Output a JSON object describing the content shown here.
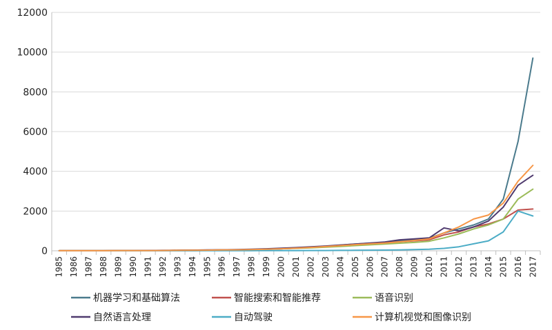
{
  "chart_data": {
    "type": "line",
    "title": "",
    "xlabel": "",
    "ylabel": "",
    "ylim": [
      0,
      12000
    ],
    "yticks": [
      0,
      2000,
      4000,
      6000,
      8000,
      10000,
      12000
    ],
    "ytick_labels": [
      "0",
      "2000",
      "4000",
      "6000",
      "8000",
      "10000",
      "12000"
    ],
    "grid": "horizontal",
    "legend_position": "bottom",
    "categories": [
      "1985",
      "1986",
      "1987",
      "1988",
      "1989",
      "1990",
      "1991",
      "1992",
      "1993",
      "1994",
      "1995",
      "1996",
      "1997",
      "1998",
      "1999",
      "2000",
      "2001",
      "2002",
      "2003",
      "2004",
      "2005",
      "2006",
      "2007",
      "2008",
      "2009",
      "2010",
      "2011",
      "2012",
      "2013",
      "2014",
      "2015",
      "2016",
      "2017"
    ],
    "series": [
      {
        "name": "机器学习和基础算法",
        "color": "#4a7a8c",
        "values": [
          5,
          5,
          5,
          5,
          10,
          10,
          10,
          10,
          15,
          15,
          20,
          30,
          40,
          50,
          70,
          100,
          130,
          170,
          220,
          280,
          340,
          380,
          420,
          500,
          560,
          630,
          900,
          1100,
          1300,
          1600,
          2600,
          5500,
          9700
        ]
      },
      {
        "name": "智能搜索和智能推荐",
        "color": "#c0504d",
        "values": [
          5,
          5,
          5,
          5,
          10,
          10,
          10,
          15,
          20,
          25,
          30,
          40,
          50,
          60,
          80,
          100,
          130,
          160,
          200,
          250,
          300,
          350,
          400,
          450,
          500,
          550,
          800,
          950,
          1200,
          1350,
          1600,
          2050,
          2100
        ]
      },
      {
        "name": "语音识别",
        "color": "#9bbb59",
        "values": [
          5,
          5,
          5,
          5,
          10,
          10,
          10,
          15,
          20,
          25,
          30,
          40,
          50,
          60,
          80,
          100,
          120,
          150,
          180,
          220,
          260,
          300,
          340,
          380,
          420,
          480,
          650,
          850,
          1100,
          1300,
          1600,
          2600,
          3100
        ]
      },
      {
        "name": "自然语言处理",
        "color": "#4f3a6e",
        "values": [
          5,
          5,
          5,
          5,
          10,
          10,
          15,
          20,
          25,
          30,
          40,
          50,
          60,
          80,
          100,
          130,
          160,
          200,
          240,
          290,
          340,
          390,
          440,
          550,
          600,
          650,
          1150,
          1000,
          1200,
          1500,
          2200,
          3300,
          3800
        ]
      },
      {
        "name": "自动驾驶",
        "color": "#4bacc6",
        "values": [
          0,
          0,
          0,
          0,
          0,
          0,
          0,
          0,
          0,
          0,
          5,
          5,
          5,
          5,
          10,
          10,
          10,
          15,
          15,
          20,
          25,
          30,
          35,
          40,
          60,
          80,
          120,
          200,
          350,
          500,
          950,
          2000,
          1750
        ]
      },
      {
        "name": "计算机视觉和图像识别",
        "color": "#f79646",
        "values": [
          5,
          5,
          5,
          5,
          10,
          10,
          10,
          15,
          20,
          25,
          30,
          40,
          50,
          60,
          80,
          100,
          130,
          170,
          210,
          260,
          310,
          350,
          390,
          450,
          520,
          600,
          900,
          1200,
          1600,
          1800,
          2400,
          3500,
          4300
        ]
      }
    ]
  }
}
